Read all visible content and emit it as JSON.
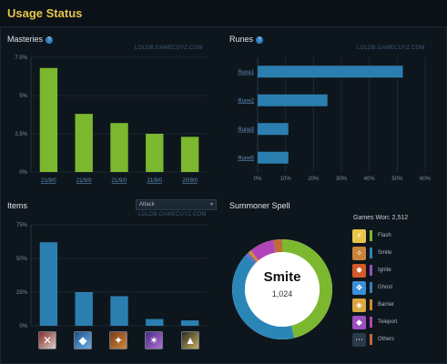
{
  "header": {
    "title": "Usage Status"
  },
  "masteries": {
    "title": "Masteries",
    "watermark": "LOLDB.GAMECUYZ.COM",
    "y_ticks": [
      "7.5%",
      "5%",
      "2.5%",
      "0%"
    ],
    "categories": [
      "21/9/0",
      "21/9/0",
      "21/9/0",
      "21/9/0",
      "20/9/0"
    ]
  },
  "runes": {
    "title": "Runes",
    "watermark": "LOLDB.GAMECUYZ.COM",
    "categories": [
      "Rune1",
      "Rune2",
      "Rune3",
      "Rune5"
    ],
    "x_ticks": [
      "0%",
      "10%",
      "20%",
      "30%",
      "40%",
      "50%",
      "60%"
    ]
  },
  "items": {
    "title": "Items",
    "watermark": "LOLDB.GAMECUYZ.COM",
    "filter_selected": "Attack",
    "y_ticks": [
      "75%",
      "50%",
      "25%",
      "0%"
    ],
    "item_icons": [
      "axe-item-icon",
      "blade-item-icon",
      "shield-item-icon",
      "staff-item-icon",
      "triforce-item-icon"
    ]
  },
  "summoner": {
    "title": "Summoner Spell",
    "games_won": "Games Won: 2,512",
    "center_label": "Smite",
    "center_value": "1,024",
    "legend": [
      {
        "label": "Flash",
        "color": "#e8c54a",
        "swatch": "#7cb82f",
        "icon": "flash-spell-icon"
      },
      {
        "label": "Smite",
        "color": "#c9823a",
        "swatch": "#2b86b8",
        "icon": "smite-spell-icon"
      },
      {
        "label": "Ignite",
        "color": "#d35a2a",
        "swatch": "#9b4fbf",
        "icon": "ignite-spell-icon"
      },
      {
        "label": "Ghost",
        "color": "#3a8fd6",
        "swatch": "#2f7fc2",
        "icon": "ghost-spell-icon"
      },
      {
        "label": "Barrier",
        "color": "#d9a640",
        "swatch": "#d48a2a",
        "icon": "barrier-spell-icon"
      },
      {
        "label": "Teleport",
        "color": "#9b4fbf",
        "swatch": "#b044b8",
        "icon": "teleport-spell-icon"
      },
      {
        "label": "Others",
        "color": "#2a3a4a",
        "swatch": "#c06a3a",
        "icon": "others-spell-icon"
      }
    ]
  },
  "colors": {
    "accent": "#e8c54a",
    "green": "#7cb82f",
    "blue": "#2b7fb0"
  },
  "chart_data": [
    {
      "type": "bar",
      "title": "Masteries",
      "categories": [
        "21/9/0",
        "21/9/0",
        "21/9/0",
        "21/9/0",
        "20/9/0"
      ],
      "values": [
        6.8,
        3.8,
        3.2,
        2.5,
        2.3
      ],
      "ylim": [
        0,
        7.5
      ],
      "y_unit": "%",
      "grid": true
    },
    {
      "type": "bar",
      "orientation": "horizontal",
      "title": "Runes",
      "categories": [
        "Rune1",
        "Rune2",
        "Rune3",
        "Rune5"
      ],
      "values": [
        52,
        25,
        11,
        11
      ],
      "xlim": [
        0,
        60
      ],
      "x_unit": "%",
      "grid": true
    },
    {
      "type": "bar",
      "title": "Items",
      "categories": [
        "axe-item-icon",
        "blade-item-icon",
        "shield-item-icon",
        "staff-item-icon",
        "triforce-item-icon"
      ],
      "values": [
        62,
        25,
        22,
        5,
        4
      ],
      "ylim": [
        0,
        75
      ],
      "y_unit": "%",
      "grid": true
    },
    {
      "type": "pie",
      "title": "Summoner Spell",
      "style": "donut",
      "categories": [
        "Flash",
        "Smite",
        "Ignite",
        "Ghost",
        "Barrier",
        "Teleport",
        "Others"
      ],
      "values": [
        46,
        41,
        0.5,
        0.5,
        1,
        8,
        3
      ],
      "colors": [
        "#7cb82f",
        "#2b86b8",
        "#9b4fbf",
        "#2f7fc2",
        "#d48a2a",
        "#b044b8",
        "#c06a3a"
      ]
    }
  ]
}
